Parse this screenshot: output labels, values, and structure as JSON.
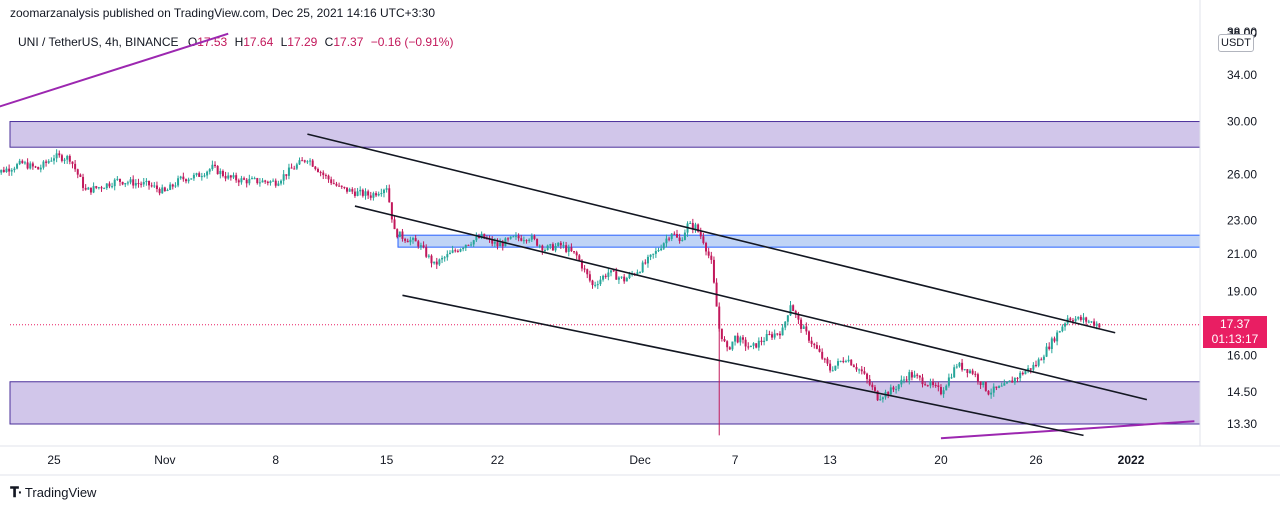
{
  "publisher": "zoomarzanalysis published on TradingView.com, Dec 25, 2021 14:16 UTC+3:30",
  "legend": {
    "symbol": "UNI / TetherUS, 4h, BINANCE",
    "open_label": "O",
    "open": "17.53",
    "high_label": "H",
    "high": "17.64",
    "low_label": "L",
    "low": "17.29",
    "close_label": "C",
    "close": "17.37",
    "change": "−0.16 (−0.91%)"
  },
  "unit": "USDT",
  "last_price": {
    "value": "17.37",
    "countdown": "01:13:17"
  },
  "footer": {
    "brand": "TradingView",
    "logo": "tradingview-logo-icon"
  },
  "colors": {
    "up": "#26a69a",
    "down": "#c2185b",
    "last_price": "#e91e63",
    "zone": "#ccc0e8",
    "zone_border": "#4a2f9a",
    "blue_zone": "#b9cff5",
    "blue_border": "#2962ff",
    "trend_purple": "#9c27b0",
    "channel": "#131722"
  },
  "chart_data": {
    "type": "candlestick",
    "symbol": "UNI / TetherUS",
    "interval": "4h",
    "exchange": "BINANCE",
    "y_scale": "log",
    "ylim": [
      12.8,
      39.0
    ],
    "y_ticks": [
      38.0,
      34.0,
      30.0,
      26.0,
      23.0,
      21.0,
      19.0,
      16.0,
      14.5,
      13.3
    ],
    "y_tick_labels": [
      "38.00",
      "34.00",
      "30.00",
      "26.00",
      "23.00",
      "21.00",
      "19.00",
      "16.00",
      "14.50",
      "13.30"
    ],
    "x_ticks": [
      "25",
      "Nov",
      "8",
      "15",
      "22",
      "Dec",
      "7",
      "13",
      "20",
      "26",
      "2022"
    ],
    "x_tick_dates": [
      "2021-10-25",
      "2021-11-01",
      "2021-11-08",
      "2021-11-15",
      "2021-11-22",
      "2021-12-01",
      "2021-12-07",
      "2021-12-13",
      "2021-12-20",
      "2021-12-26",
      "2022-01-01"
    ],
    "last_price": 17.37,
    "price_path": [
      [
        "2021-10-21",
        26.0
      ],
      [
        "2021-10-23",
        26.8
      ],
      [
        "2021-10-24",
        26.4
      ],
      [
        "2021-10-25",
        27.3
      ],
      [
        "2021-10-26",
        27.2
      ],
      [
        "2021-10-27",
        24.9
      ],
      [
        "2021-10-28",
        25.2
      ],
      [
        "2021-10-29",
        25.6
      ],
      [
        "2021-10-31",
        25.3
      ],
      [
        "2021-11-01",
        24.8
      ],
      [
        "2021-11-02",
        25.7
      ],
      [
        "2021-11-03",
        25.9
      ],
      [
        "2021-11-04",
        26.5
      ],
      [
        "2021-11-05",
        25.8
      ],
      [
        "2021-11-06",
        25.6
      ],
      [
        "2021-11-08",
        25.5
      ],
      [
        "2021-11-09",
        26.4
      ],
      [
        "2021-11-10",
        27.2
      ],
      [
        "2021-11-11",
        26.0
      ],
      [
        "2021-11-12",
        25.1
      ],
      [
        "2021-11-13",
        24.8
      ],
      [
        "2021-11-14",
        24.6
      ],
      [
        "2021-11-15",
        25.2
      ],
      [
        "2021-11-15T12",
        22.3
      ],
      [
        "2021-11-16",
        22.0
      ],
      [
        "2021-11-17",
        21.6
      ],
      [
        "2021-11-18",
        20.4
      ],
      [
        "2021-11-19",
        21.0
      ],
      [
        "2021-11-20",
        21.6
      ],
      [
        "2021-11-21",
        22.0
      ],
      [
        "2021-11-22",
        21.5
      ],
      [
        "2021-11-23",
        21.9
      ],
      [
        "2021-11-24",
        22.0
      ],
      [
        "2021-11-25",
        21.3
      ],
      [
        "2021-11-26",
        21.5
      ],
      [
        "2021-11-27",
        20.9
      ],
      [
        "2021-11-28",
        19.3
      ],
      [
        "2021-11-29",
        20.0
      ],
      [
        "2021-11-30",
        19.6
      ],
      [
        "2021-12-01",
        20.2
      ],
      [
        "2021-12-02",
        21.1
      ],
      [
        "2021-12-03",
        22.3
      ],
      [
        "2021-12-03T12",
        21.7
      ],
      [
        "2021-12-04",
        22.7
      ],
      [
        "2021-12-04T12",
        22.6
      ],
      [
        "2021-12-05",
        21.8
      ],
      [
        "2021-12-05T12",
        20.5
      ],
      [
        "2021-12-06",
        17.2
      ],
      [
        "2021-12-06T12",
        16.2
      ],
      [
        "2021-12-07",
        16.8
      ],
      [
        "2021-12-08",
        16.3
      ],
      [
        "2021-12-09",
        16.8
      ],
      [
        "2021-12-10",
        17.1
      ],
      [
        "2021-12-10T12",
        18.4
      ],
      [
        "2021-12-11",
        17.5
      ],
      [
        "2021-12-12",
        16.4
      ],
      [
        "2021-12-13",
        15.4
      ],
      [
        "2021-12-14",
        15.9
      ],
      [
        "2021-12-15",
        15.3
      ],
      [
        "2021-12-16",
        14.3
      ],
      [
        "2021-12-17",
        14.6
      ],
      [
        "2021-12-18",
        15.2
      ],
      [
        "2021-12-19",
        14.9
      ],
      [
        "2021-12-20",
        14.5
      ],
      [
        "2021-12-21",
        15.6
      ],
      [
        "2021-12-22",
        15.3
      ],
      [
        "2021-12-23",
        14.5
      ],
      [
        "2021-12-24",
        14.7
      ],
      [
        "2021-12-25",
        15.2
      ],
      [
        "2021-12-26",
        15.6
      ],
      [
        "2021-12-27",
        16.6
      ],
      [
        "2021-12-28",
        17.7
      ],
      [
        "2021-12-29",
        17.6
      ],
      [
        "2021-12-30",
        17.37
      ]
    ],
    "wick_spike_low": {
      "date": "2021-12-06",
      "price": 12.9
    },
    "zones": [
      {
        "from": 28.0,
        "to": 30.0,
        "color": "purple"
      },
      {
        "from": 21.4,
        "to": 22.1,
        "color": "blue"
      },
      {
        "from": 13.3,
        "to": 14.9,
        "color": "purple"
      }
    ],
    "trend_lines": [
      {
        "color": "purple",
        "points": [
          [
            "2021-10-21",
            31.0
          ],
          [
            "2021-11-05",
            38.0
          ]
        ]
      },
      {
        "color": "purple",
        "points": [
          [
            "2021-12-20",
            12.8
          ],
          [
            "2022-01-05",
            13.4
          ]
        ]
      },
      {
        "color": "black",
        "points": [
          [
            "2021-11-10",
            29.0
          ],
          [
            "2021-12-31",
            17.0
          ]
        ]
      },
      {
        "color": "black",
        "points": [
          [
            "2021-11-13",
            23.9
          ],
          [
            "2022-01-02",
            14.2
          ]
        ]
      },
      {
        "color": "black",
        "points": [
          [
            "2021-11-16",
            18.8
          ],
          [
            "2021-12-29",
            12.9
          ]
        ]
      }
    ]
  }
}
